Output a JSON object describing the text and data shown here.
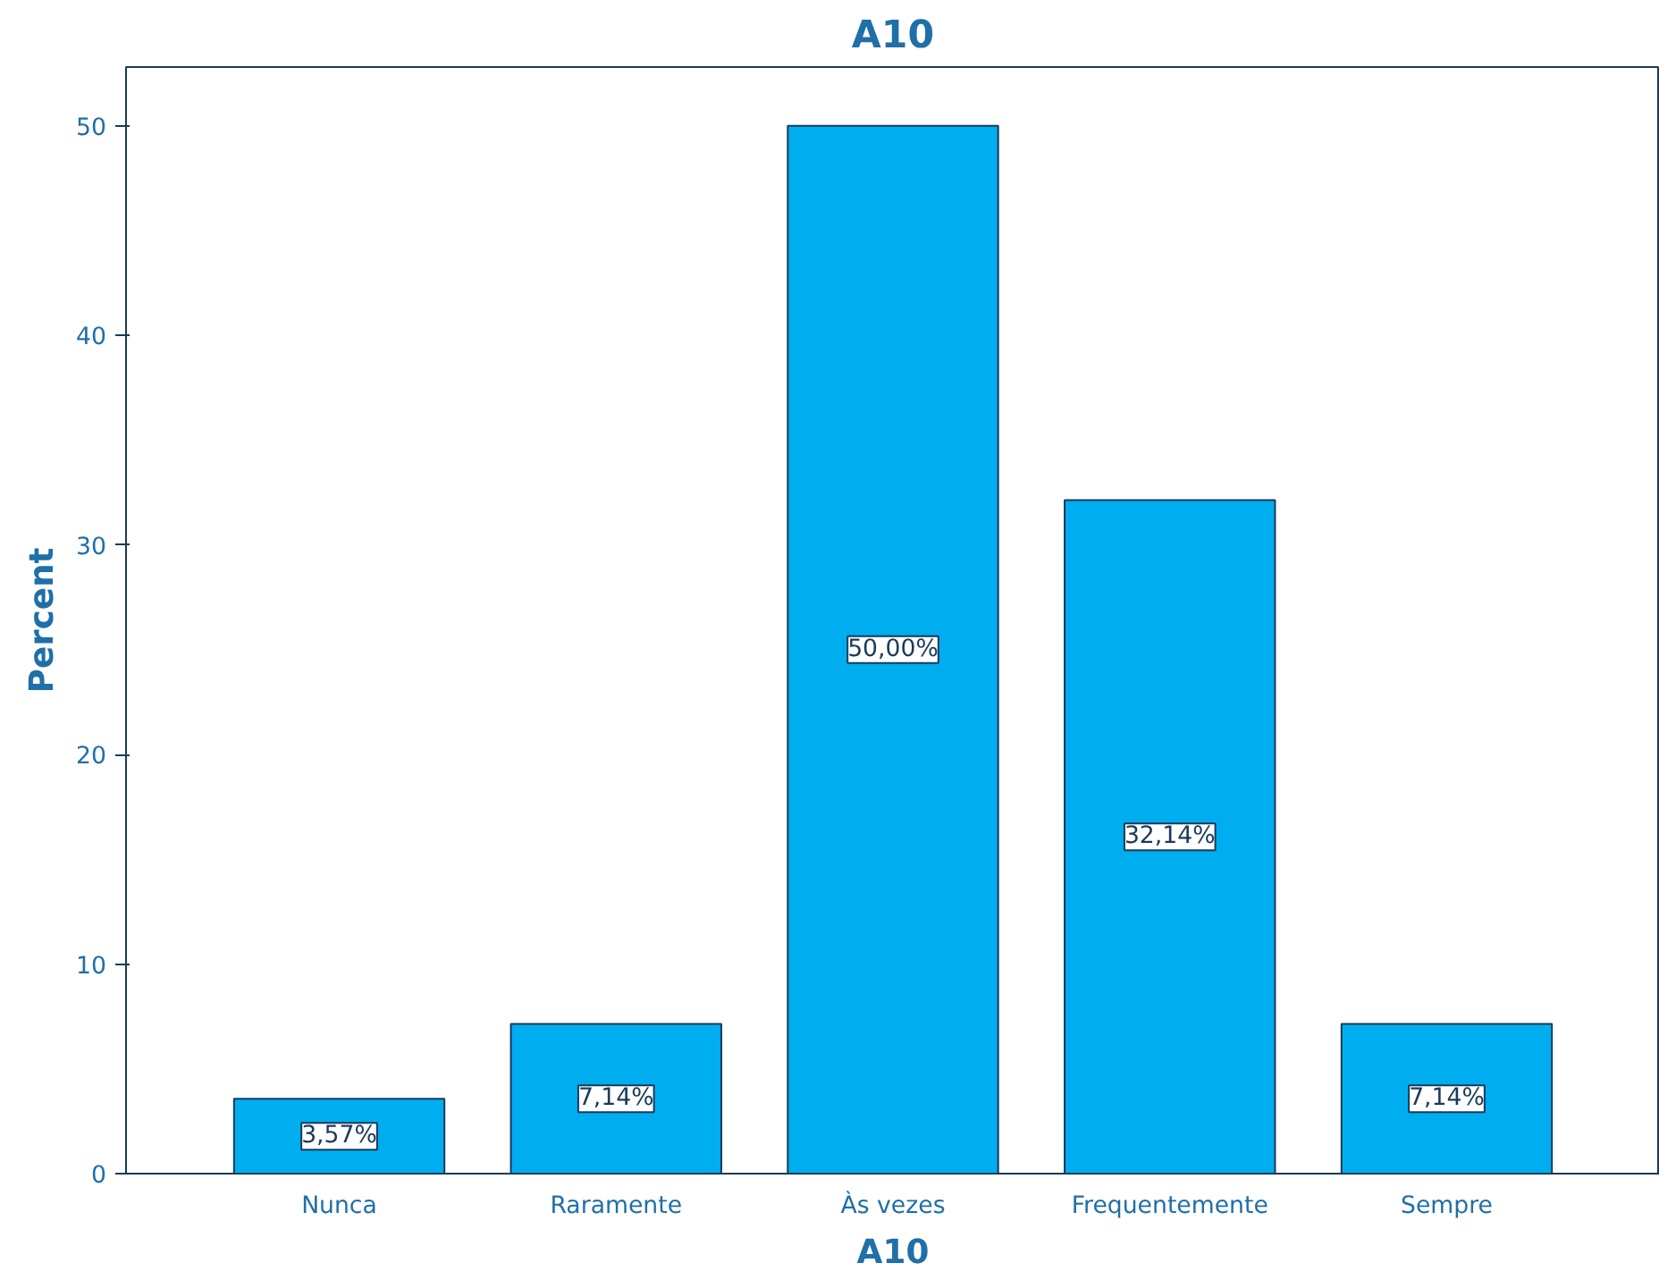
{
  "chart_data": {
    "type": "bar",
    "title": "A10",
    "xlabel": "A10",
    "ylabel": "Percent",
    "categories": [
      "Nunca",
      "Raramente",
      "Às vezes",
      "Frequentemente",
      "Sempre"
    ],
    "values": [
      3.57,
      7.14,
      50.0,
      32.14,
      7.14
    ],
    "value_labels": [
      "3,57%",
      "7,14%",
      "50,00%",
      "32,14%",
      "7,14%"
    ],
    "color": "#00aeef",
    "ylim": [
      0,
      52.8
    ],
    "yticks": [
      0,
      10,
      20,
      30,
      40,
      50
    ],
    "grid": false
  }
}
